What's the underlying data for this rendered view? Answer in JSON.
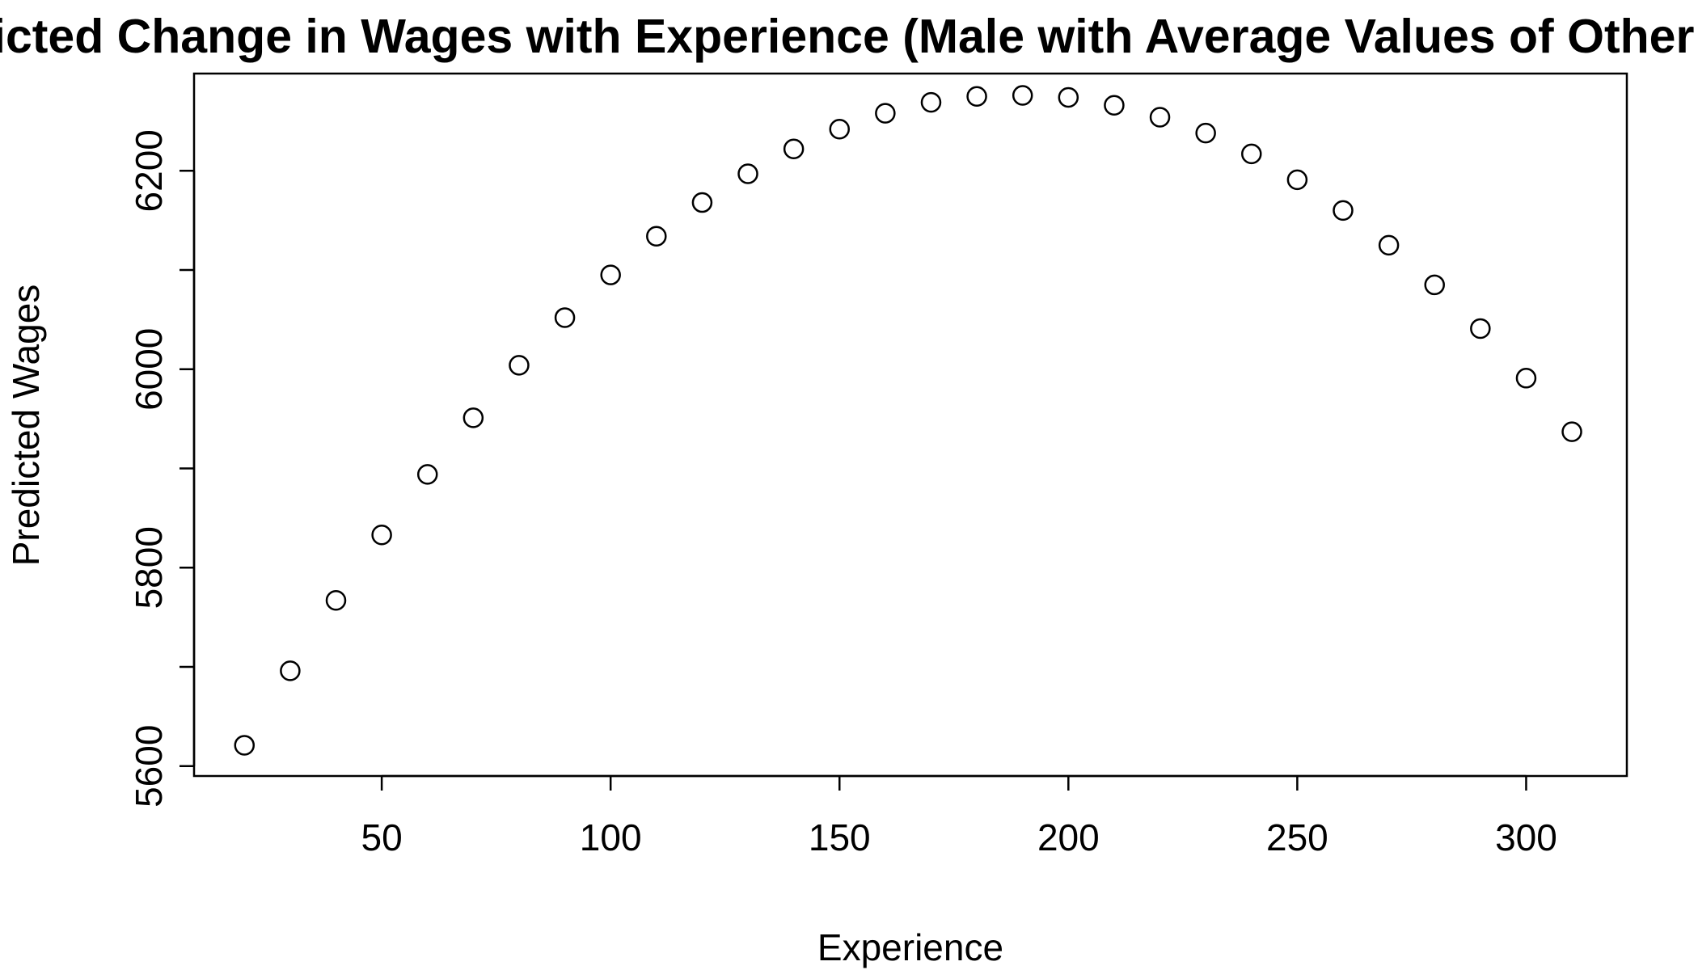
{
  "chart_data": {
    "type": "scatter",
    "title": "Predicted Change in Wages with Experience (Male with Average Values of Other Variables)",
    "xlabel": "Experience",
    "ylabel": "Predicted Wages",
    "xlim": [
      9,
      322
    ],
    "ylim": [
      5590,
      6298
    ],
    "x_ticks": [
      50,
      100,
      150,
      200,
      250,
      300
    ],
    "y_ticks": [
      5600,
      5800,
      6000,
      6200
    ],
    "y_minor_ticks": [
      5700,
      5900,
      6100
    ],
    "x_tick_labels": [
      "50",
      "100",
      "150",
      "200",
      "250",
      "300"
    ],
    "y_tick_labels": [
      "5600",
      "5800",
      "6000",
      "6200"
    ],
    "marker": "open-circle",
    "grid": false,
    "legend": "none",
    "x": [
      20,
      30,
      40,
      50,
      60,
      70,
      80,
      90,
      100,
      110,
      120,
      130,
      140,
      150,
      160,
      170,
      180,
      190,
      200,
      210,
      220,
      230,
      240,
      250,
      260,
      270,
      280,
      290,
      300,
      310
    ],
    "y": [
      5621,
      5696,
      5767,
      5833,
      5894,
      5951,
      6004,
      6052,
      6095,
      6134,
      6168,
      6197,
      6222,
      6242,
      6258,
      6269,
      6275,
      6276,
      6274,
      6266,
      6254,
      6238,
      6217,
      6191,
      6160,
      6125,
      6085,
      6041,
      5991,
      5937
    ],
    "colors": {
      "points": "#000000",
      "axes": "#000000",
      "background": "#ffffff"
    }
  }
}
